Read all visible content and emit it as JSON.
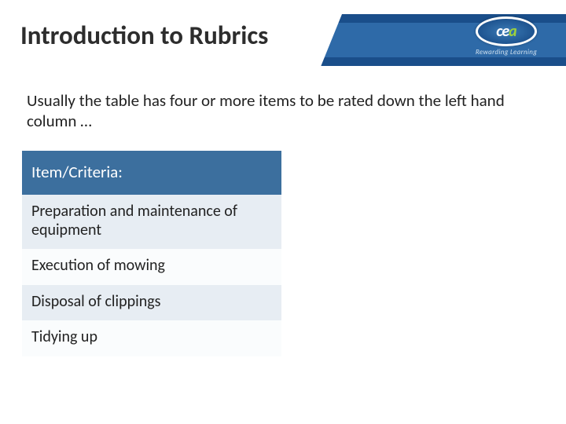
{
  "colors": {
    "band_dark": "#1a4e8a",
    "band_light": "#2e6aa8",
    "table_header_bg": "#3c6f9e",
    "table_header_text": "#ffffff",
    "row_shade": "#e7edf3",
    "row_plain": "#fafcfd",
    "text": "#222222",
    "logo_accent": "#9fd13b"
  },
  "header": {
    "title": "Introduction to Rubrics",
    "logo_letters_ce": "ce",
    "logo_letters_a": "a",
    "logo_tagline": "Rewarding Learning"
  },
  "body": {
    "intro": "Usually the table has four or more items to be rated down the left hand column …"
  },
  "table": {
    "header": "Item/Criteria:",
    "rows": [
      "Preparation and maintenance of equipment",
      "Execution of mowing",
      "Disposal of clippings",
      "Tidying up"
    ]
  }
}
